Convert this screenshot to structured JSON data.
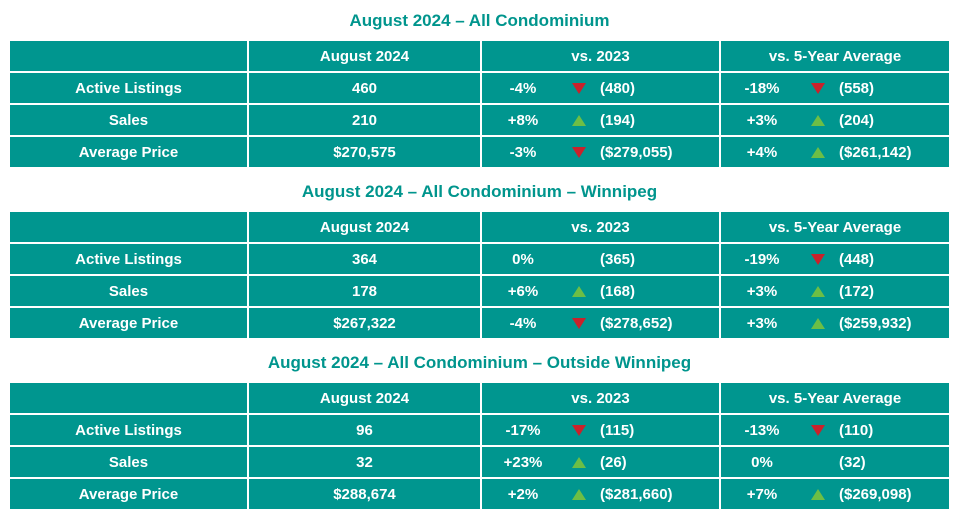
{
  "colors": {
    "table_teal": "#00968F",
    "title_teal": "#00958D",
    "arrow_up_green": "#6DBE45",
    "arrow_down_red": "#C9222B",
    "cell_text": "#FFFFFF",
    "background": "#FFFFFF"
  },
  "tables": [
    {
      "title": "August 2024 – All Condominium",
      "columns": [
        "",
        "August 2024",
        "vs. 2023",
        "vs. 5-Year Average"
      ],
      "rows": [
        {
          "label": "Active Listings",
          "current": "460",
          "vs2023": {
            "pct": "-4%",
            "dir": "down",
            "ref": "(480)"
          },
          "vs5yr": {
            "pct": "-18%",
            "dir": "down",
            "ref": "(558)"
          }
        },
        {
          "label": "Sales",
          "current": "210",
          "vs2023": {
            "pct": "+8%",
            "dir": "up",
            "ref": "(194)"
          },
          "vs5yr": {
            "pct": "+3%",
            "dir": "up",
            "ref": "(204)"
          }
        },
        {
          "label": "Average Price",
          "current": "$270,575",
          "vs2023": {
            "pct": "-3%",
            "dir": "down",
            "ref": "($279,055)"
          },
          "vs5yr": {
            "pct": "+4%",
            "dir": "up",
            "ref": "($261,142)"
          }
        }
      ]
    },
    {
      "title": "August 2024 – All Condominium – Winnipeg",
      "columns": [
        "",
        "August 2024",
        "vs. 2023",
        "vs. 5-Year Average"
      ],
      "rows": [
        {
          "label": "Active Listings",
          "current": "364",
          "vs2023": {
            "pct": "0%",
            "dir": "none",
            "ref": "(365)"
          },
          "vs5yr": {
            "pct": "-19%",
            "dir": "down",
            "ref": "(448)"
          }
        },
        {
          "label": "Sales",
          "current": "178",
          "vs2023": {
            "pct": "+6%",
            "dir": "up",
            "ref": "(168)"
          },
          "vs5yr": {
            "pct": "+3%",
            "dir": "up",
            "ref": "(172)"
          }
        },
        {
          "label": "Average Price",
          "current": "$267,322",
          "vs2023": {
            "pct": "-4%",
            "dir": "down",
            "ref": "($278,652)"
          },
          "vs5yr": {
            "pct": "+3%",
            "dir": "up",
            "ref": "($259,932)"
          }
        }
      ]
    },
    {
      "title": "August 2024 – All Condominium – Outside Winnipeg",
      "columns": [
        "",
        "August 2024",
        "vs. 2023",
        "vs. 5-Year Average"
      ],
      "rows": [
        {
          "label": "Active Listings",
          "current": "96",
          "vs2023": {
            "pct": "-17%",
            "dir": "down",
            "ref": "(115)"
          },
          "vs5yr": {
            "pct": "-13%",
            "dir": "down",
            "ref": "(110)"
          }
        },
        {
          "label": "Sales",
          "current": "32",
          "vs2023": {
            "pct": "+23%",
            "dir": "up",
            "ref": "(26)"
          },
          "vs5yr": {
            "pct": "0%",
            "dir": "none",
            "ref": "(32)"
          }
        },
        {
          "label": "Average Price",
          "current": "$288,674",
          "vs2023": {
            "pct": "+2%",
            "dir": "up",
            "ref": "($281,660)"
          },
          "vs5yr": {
            "pct": "+7%",
            "dir": "up",
            "ref": "($269,098)"
          }
        }
      ]
    }
  ]
}
